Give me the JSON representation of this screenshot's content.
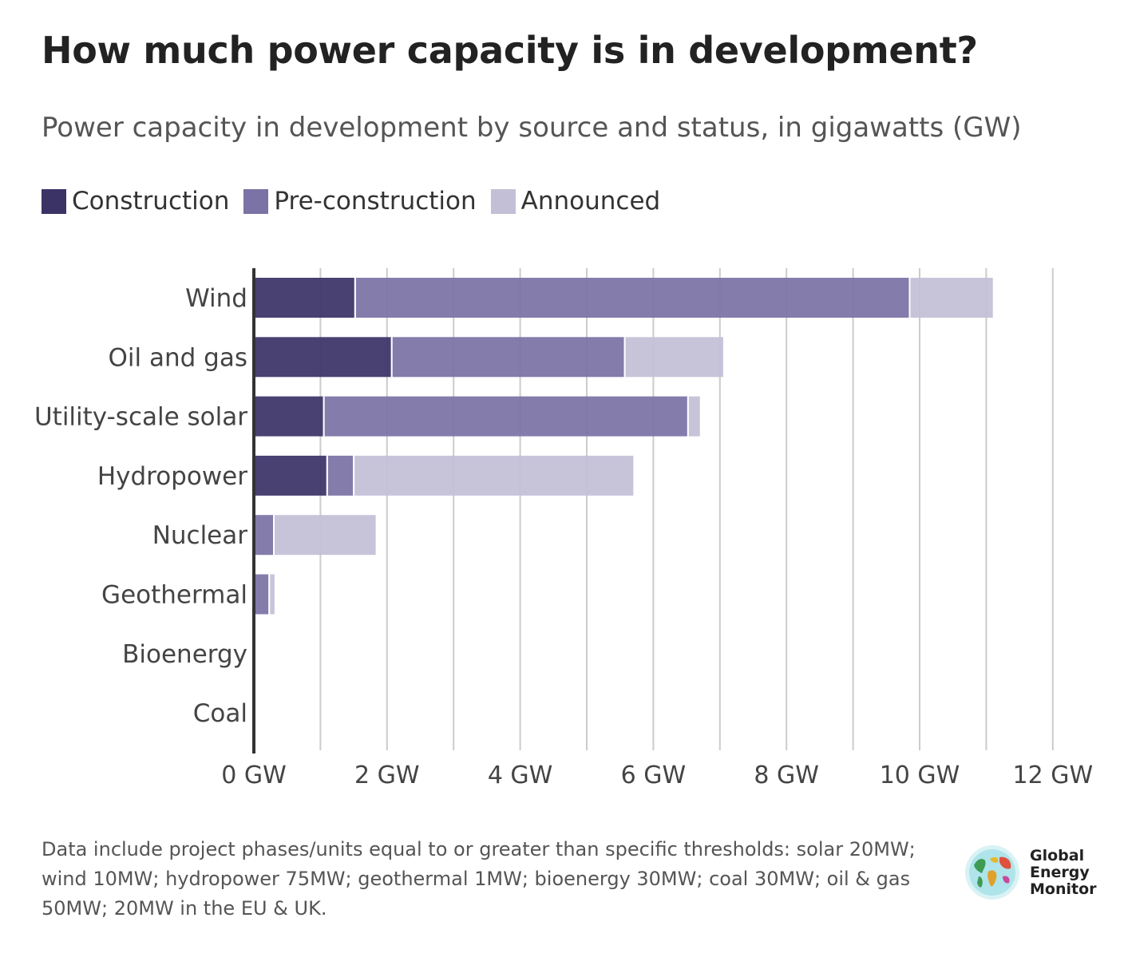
{
  "title": "How much power capacity is in development?",
  "subtitle": "Power capacity in development by source and status, in gigawatts (GW)",
  "footnote": "Data include project phases/units equal to or greater than specific thresholds: solar 20MW; wind 10MW; hydropower 75MW; geothermal 1MW; bioenergy 30MW; coal 30MW; oil & gas 50MW; 20MW in the EU & UK.",
  "logo": {
    "line1": "Global",
    "line2": "Energy",
    "line3": "Monitor",
    "icon": "globe-icon"
  },
  "colors": {
    "construction": "#3b3366",
    "pre_construction": "#7b72a5",
    "announced": "#c3bfd7",
    "grid": "#cccccc",
    "axis": "#333333"
  },
  "chart_data": {
    "type": "bar",
    "orientation": "horizontal",
    "stacked": true,
    "title": "How much power capacity is in development?",
    "subtitle": "Power capacity in development by source and status, in gigawatts (GW)",
    "categories": [
      "Wind",
      "Oil and gas",
      "Utility-scale solar",
      "Hydropower",
      "Nuclear",
      "Geothermal",
      "Bioenergy",
      "Coal"
    ],
    "series": [
      {
        "name": "Construction",
        "color": "#3b3366",
        "values": [
          1.52,
          2.07,
          1.05,
          1.1,
          0,
          0,
          0,
          0
        ]
      },
      {
        "name": "Pre-construction",
        "color": "#7b72a5",
        "values": [
          8.33,
          3.5,
          5.47,
          0.4,
          0.3,
          0.23,
          0,
          0
        ]
      },
      {
        "name": "Announced",
        "color": "#c3bfd7",
        "values": [
          1.25,
          1.48,
          0.18,
          4.2,
          1.53,
          0.08,
          0,
          0
        ]
      }
    ],
    "xlim": [
      0,
      12
    ],
    "xticks": [
      0,
      2,
      4,
      6,
      8,
      10,
      12
    ],
    "xtick_labels": [
      "0 GW",
      "2 GW",
      "4 GW",
      "6 GW",
      "8 GW",
      "10 GW",
      "12 GW"
    ],
    "grid": true,
    "legend": "top-left"
  }
}
